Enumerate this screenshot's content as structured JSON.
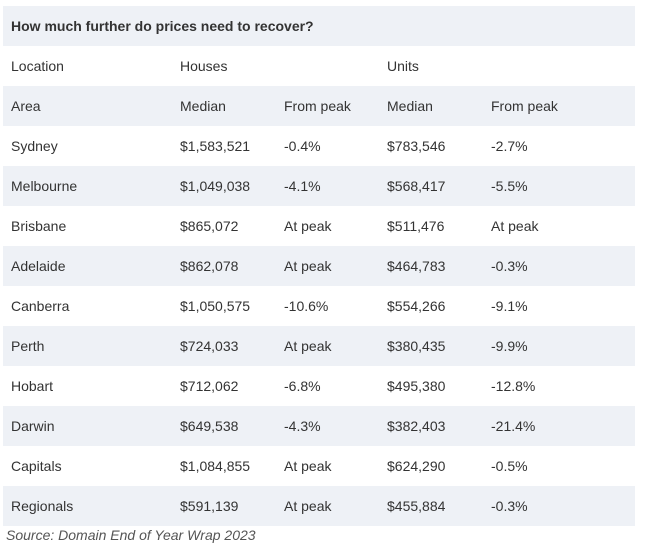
{
  "table": {
    "title": "How much further do prices need to recover?",
    "group_header": {
      "location": "Location",
      "houses": "Houses",
      "units": "Units"
    },
    "sub_header": {
      "area": "Area",
      "houses_median": "Median",
      "houses_from_peak": "From peak",
      "units_median": "Median",
      "units_from_peak": "From peak"
    },
    "rows": [
      {
        "area": "Sydney",
        "houses_median": "$1,583,521",
        "houses_from_peak": "-0.4%",
        "units_median": "$783,546",
        "units_from_peak": "-2.7%"
      },
      {
        "area": "Melbourne",
        "houses_median": "$1,049,038",
        "houses_from_peak": "-4.1%",
        "units_median": "$568,417",
        "units_from_peak": "-5.5%"
      },
      {
        "area": "Brisbane",
        "houses_median": "$865,072",
        "houses_from_peak": "At peak",
        "units_median": "$511,476",
        "units_from_peak": "At peak"
      },
      {
        "area": "Adelaide",
        "houses_median": "$862,078",
        "houses_from_peak": "At peak",
        "units_median": "$464,783",
        "units_from_peak": "-0.3%"
      },
      {
        "area": "Canberra",
        "houses_median": "$1,050,575",
        "houses_from_peak": "-10.6%",
        "units_median": "$554,266",
        "units_from_peak": "-9.1%"
      },
      {
        "area": "Perth",
        "houses_median": "$724,033",
        "houses_from_peak": "At peak",
        "units_median": "$380,435",
        "units_from_peak": "-9.9%"
      },
      {
        "area": "Hobart",
        "houses_median": "$712,062",
        "houses_from_peak": "-6.8%",
        "units_median": "$495,380",
        "units_from_peak": "-12.8%"
      },
      {
        "area": "Darwin",
        "houses_median": "$649,538",
        "houses_from_peak": "-4.3%",
        "units_median": "$382,403",
        "units_from_peak": "-21.4%"
      },
      {
        "area": "Capitals",
        "houses_median": "$1,084,855",
        "houses_from_peak": "At peak",
        "units_median": "$624,290",
        "units_from_peak": "-0.5%"
      },
      {
        "area": "Regionals",
        "houses_median": "$591,139",
        "houses_from_peak": "At peak",
        "units_median": "$455,884",
        "units_from_peak": "-0.3%"
      }
    ]
  },
  "source": "Source: Domain End of Year Wrap 2023",
  "colors": {
    "row_shade": "#eef1f6",
    "text": "#333333"
  }
}
